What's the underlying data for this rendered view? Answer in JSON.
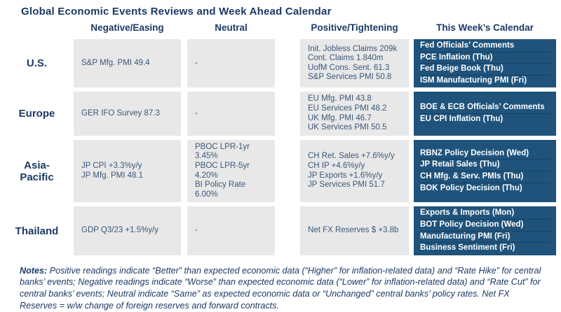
{
  "title": "Global Economic Events Reviews and Week Ahead Calendar",
  "columns": {
    "negative": "Negative/Easing",
    "neutral": "Neutral",
    "positive": "Positive/Tightening",
    "calendar": "This Week’s Calendar"
  },
  "rows": [
    {
      "region": "U.S.",
      "negative": [
        "S&P Mfg. PMI 49.4"
      ],
      "neutral": [
        "-"
      ],
      "positive": [
        "Init. Jobless Claims 209k",
        "Cont. Claims 1.840m",
        "UofM Cons. Sent. 61.3",
        "S&P Services PMI 50.8"
      ],
      "calendar": [
        "Fed Officials’ Comments",
        "PCE Inflation (Thu)",
        "Fed Beige Book (Thu)",
        "ISM Manufacturing PMI (Fri)"
      ]
    },
    {
      "region": "Europe",
      "negative": [
        "GER IFO Survey 87.3"
      ],
      "neutral": [
        "-"
      ],
      "positive": [
        "EU Mfg. PMI 43.8",
        "EU Services PMI 48.2",
        "UK Mfg. PMI 46.7",
        "UK Services PMI 50.5"
      ],
      "calendar": [
        "BOE & ECB Officials’ Comments",
        "EU CPI Inflation (Thu)"
      ]
    },
    {
      "region": "Asia-",
      "region2": "Pacific",
      "negative": [
        "JP CPI +3.3%y/y",
        "JP Mfg. PMI 48.1"
      ],
      "neutral": [
        "PBOC LPR-1yr 3.45%",
        "PBOC LPR-5yr 4.20%",
        "BI Policy Rate 6.00%"
      ],
      "positive": [
        "CH Ret. Sales +7.6%y/y",
        "CH IP +4.6%y/y",
        "JP Exports +1.6%y/y",
        "JP Services PMI 51.7"
      ],
      "calendar": [
        "RBNZ Policy Decision (Wed)",
        "JP Retail Sales (Thu)",
        "CH Mfg. & Serv. PMIs (Thu)",
        "BOK Policy Decision (Thu)"
      ]
    },
    {
      "region": "Thailand",
      "negative": [
        "GDP Q3/23 +1.5%y/y"
      ],
      "neutral": [
        "-"
      ],
      "positive": [
        "Net FX Reserves $ +3.8b"
      ],
      "calendar": [
        "Exports & Imports (Mon)",
        "BOT Policy Decision (Wed)",
        "Manufacturing PMI (Fri)",
        "Business Sentiment (Fri)"
      ]
    }
  ],
  "notes": {
    "label": "Notes:",
    "text": " Positive readings indicate “Better” than expected economic data (“Higher” for inflation-related data) and “Rate Hike” for central banks’ events; Negative readings indicate “Worse” than expected economic data (“Lower” for inflation-related data) and “Rate Cut” for central banks’ events; Neutral indicate “Same” as expected economic data or “Unchanged” central banks’ policy rates. Net FX Reserves = w/w change of foreign reserves and forward contracts."
  },
  "colors": {
    "navy": "#1c3a66",
    "cell_text": "#3a5878",
    "cell_bg": "#e8e8e8",
    "calendar_bg": "#1f537b",
    "calendar_text": "#ffffff"
  }
}
